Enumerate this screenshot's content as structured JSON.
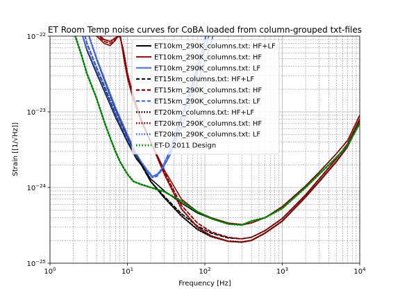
{
  "chart_data": {
    "type": "line",
    "title": "ET Room Temp noise curves for CoBA loaded from column-grouped txt-files",
    "xlabel": "Frequency [Hz]",
    "ylabel": "Strain [[1/√Hz]]",
    "xscale": "log",
    "yscale": "log",
    "xlim": [
      1,
      10000
    ],
    "ylim": [
      1e-25,
      1e-22
    ],
    "grid": true,
    "legend_position": "top-center",
    "x_ticks": [
      {
        "value": 1,
        "base": "10",
        "exp": "0"
      },
      {
        "value": 10,
        "base": "10",
        "exp": "1"
      },
      {
        "value": 100,
        "base": "10",
        "exp": "2"
      },
      {
        "value": 1000,
        "base": "10",
        "exp": "3"
      },
      {
        "value": 10000,
        "base": "10",
        "exp": "4"
      }
    ],
    "y_ticks": [
      {
        "value": 1e-25,
        "base": "10",
        "exp": "−25"
      },
      {
        "value": 1e-24,
        "base": "10",
        "exp": "−24"
      },
      {
        "value": 1e-23,
        "base": "10",
        "exp": "−23"
      },
      {
        "value": 1e-22,
        "base": "10",
        "exp": "−22"
      }
    ],
    "series": [
      {
        "name": "ET10km_290K_columns.txt: HF+LF",
        "color": "#000000",
        "style": "solid",
        "points": [
          [
            2.5,
            1.2e-22
          ],
          [
            3,
            6.5e-23
          ],
          [
            4,
            3.2e-23
          ],
          [
            5,
            1.9e-23
          ],
          [
            7,
            8.5e-24
          ],
          [
            10,
            4e-24
          ],
          [
            13,
            2.4e-24
          ],
          [
            15,
            2e-24
          ],
          [
            20,
            1.3e-24
          ],
          [
            30,
            9e-25
          ],
          [
            50,
            6.2e-25
          ],
          [
            80,
            4.6e-25
          ],
          [
            120,
            3.9e-25
          ],
          [
            200,
            3.3e-25
          ],
          [
            300,
            3.2e-25
          ],
          [
            400,
            3.4e-25
          ],
          [
            600,
            4e-25
          ],
          [
            1000,
            5.6e-25
          ],
          [
            2000,
            1.05e-24
          ],
          [
            3000,
            1.6e-24
          ],
          [
            5000,
            2.8e-24
          ],
          [
            7000,
            4.2e-24
          ],
          [
            10000,
            9e-24
          ]
        ]
      },
      {
        "name": "ET10km_290K_columns.txt: HF",
        "color": "#8b0000",
        "style": "solid",
        "points": [
          [
            3.5,
            1.2e-22
          ],
          [
            4,
            1e-22
          ],
          [
            5,
            8e-23
          ],
          [
            6,
            7.5e-23
          ],
          [
            7,
            8.8e-23
          ],
          [
            8,
            1.1e-22
          ],
          [
            9,
            5e-23
          ],
          [
            10,
            2.8e-23
          ],
          [
            12,
            1.4e-23
          ],
          [
            15,
            7.5e-24
          ],
          [
            20,
            4e-24
          ],
          [
            30,
            1.7e-24
          ],
          [
            50,
            7e-25
          ],
          [
            80,
            4.8e-25
          ],
          [
            120,
            4e-25
          ],
          [
            200,
            3.4e-25
          ],
          [
            300,
            3.25e-25
          ],
          [
            400,
            3.4e-25
          ],
          [
            600,
            4e-25
          ],
          [
            1000,
            5.6e-25
          ],
          [
            2000,
            1.05e-24
          ],
          [
            3000,
            1.6e-24
          ],
          [
            5000,
            2.8e-24
          ],
          [
            7000,
            4.2e-24
          ],
          [
            10000,
            9e-24
          ]
        ]
      },
      {
        "name": "ET10km_290K_columns.txt: LF",
        "color": "#4169e1",
        "style": "solid",
        "points": [
          [
            2.5,
            1.2e-22
          ],
          [
            3,
            6.8e-23
          ],
          [
            4,
            3.4e-23
          ],
          [
            5,
            2e-23
          ],
          [
            7,
            9e-24
          ],
          [
            10,
            4.2e-24
          ],
          [
            13,
            2.5e-24
          ],
          [
            15,
            2.1e-24
          ],
          [
            18,
            1.6e-24
          ],
          [
            21,
            1.4e-24
          ],
          [
            24,
            1.5e-24
          ],
          [
            28,
            1.7e-24
          ],
          [
            35,
            2.6e-24
          ],
          [
            45,
            5e-24
          ],
          [
            60,
            1e-23
          ],
          [
            80,
            2.4e-23
          ],
          [
            100,
            4.5e-23
          ],
          [
            120,
            8e-23
          ],
          [
            130,
            1.1e-22
          ]
        ]
      },
      {
        "name": "ET15km_columns.txt: HF+LF",
        "color": "#000000",
        "style": "dash",
        "points": [
          [
            2.7,
            1.2e-22
          ],
          [
            3,
            8e-23
          ],
          [
            4,
            3.8e-23
          ],
          [
            5,
            2.2e-23
          ],
          [
            7,
            9.5e-24
          ],
          [
            10,
            4.3e-24
          ],
          [
            13,
            2.5e-24
          ],
          [
            15,
            2e-24
          ],
          [
            20,
            1.2e-24
          ],
          [
            30,
            7.6e-25
          ],
          [
            50,
            4.5e-25
          ],
          [
            80,
            3.1e-25
          ],
          [
            120,
            2.5e-25
          ],
          [
            200,
            2.15e-25
          ],
          [
            300,
            2.1e-25
          ],
          [
            400,
            2.2e-25
          ],
          [
            600,
            2.7e-25
          ],
          [
            1000,
            3.9e-25
          ],
          [
            2000,
            8e-25
          ],
          [
            3000,
            1.3e-24
          ],
          [
            5000,
            2.4e-24
          ],
          [
            7000,
            3.8e-24
          ],
          [
            10000,
            8e-24
          ]
        ]
      },
      {
        "name": "ET15km_290K_columns.txt: HF",
        "color": "#8b0000",
        "style": "dash",
        "points": [
          [
            3.5,
            1.2e-22
          ],
          [
            4,
            1.05e-22
          ],
          [
            5,
            8.5e-23
          ],
          [
            6,
            8e-23
          ],
          [
            7,
            9e-23
          ],
          [
            8,
            1.05e-22
          ],
          [
            9,
            5.5e-23
          ],
          [
            10,
            3e-23
          ],
          [
            12,
            1.5e-23
          ],
          [
            15,
            7.8e-24
          ],
          [
            20,
            4e-24
          ],
          [
            30,
            1.6e-24
          ],
          [
            50,
            5.8e-25
          ],
          [
            80,
            3.4e-25
          ],
          [
            120,
            2.6e-25
          ],
          [
            200,
            2.2e-25
          ],
          [
            300,
            2.1e-25
          ],
          [
            400,
            2.2e-25
          ],
          [
            600,
            2.7e-25
          ],
          [
            1000,
            3.9e-25
          ],
          [
            2000,
            8e-25
          ],
          [
            3000,
            1.3e-24
          ],
          [
            5000,
            2.4e-24
          ],
          [
            7000,
            3.8e-24
          ],
          [
            10000,
            8e-24
          ]
        ]
      },
      {
        "name": "ET15km_290K_columns.txt: LF",
        "color": "#4169e1",
        "style": "dash",
        "points": [
          [
            2.7,
            1.2e-22
          ],
          [
            3,
            8.2e-23
          ],
          [
            4,
            3.9e-23
          ],
          [
            5,
            2.3e-23
          ],
          [
            7,
            9.8e-24
          ],
          [
            10,
            4.4e-24
          ],
          [
            13,
            2.6e-24
          ],
          [
            15,
            2.1e-24
          ],
          [
            18,
            1.6e-24
          ],
          [
            21,
            1.35e-24
          ],
          [
            24,
            1.4e-24
          ],
          [
            28,
            1.7e-24
          ],
          [
            35,
            2.8e-24
          ],
          [
            45,
            5.8e-24
          ],
          [
            60,
            1.3e-23
          ],
          [
            80,
            3.2e-23
          ],
          [
            100,
            6.5e-23
          ],
          [
            115,
            1.1e-22
          ]
        ]
      },
      {
        "name": "ET20km_columns.txt: HF+LF",
        "color": "#000000",
        "style": "dot",
        "points": [
          [
            3,
            1.2e-22
          ],
          [
            4,
            5e-23
          ],
          [
            5,
            2.7e-23
          ],
          [
            7,
            1.1e-23
          ],
          [
            10,
            4.8e-24
          ],
          [
            13,
            2.7e-24
          ],
          [
            15,
            2.1e-24
          ],
          [
            20,
            1.2e-24
          ],
          [
            30,
            7.3e-25
          ],
          [
            50,
            4.2e-25
          ],
          [
            80,
            2.8e-25
          ],
          [
            120,
            2.25e-25
          ],
          [
            200,
            1.95e-25
          ],
          [
            300,
            1.9e-25
          ],
          [
            400,
            2e-25
          ],
          [
            600,
            2.5e-25
          ],
          [
            1000,
            3.6e-25
          ],
          [
            2000,
            7.5e-25
          ],
          [
            3000,
            1.2e-24
          ],
          [
            5000,
            2.2e-24
          ],
          [
            7000,
            3.5e-24
          ],
          [
            10000,
            7.5e-24
          ]
        ]
      },
      {
        "name": "ET20km_290K_columns.txt: HF",
        "color": "#8b0000",
        "style": "dot",
        "points": [
          [
            3.8,
            1.2e-22
          ],
          [
            4,
            1.1e-22
          ],
          [
            5,
            9e-23
          ],
          [
            6,
            8.5e-23
          ],
          [
            7,
            9.5e-23
          ],
          [
            8,
            1e-22
          ],
          [
            9,
            6e-23
          ],
          [
            10,
            3.2e-23
          ],
          [
            12,
            1.6e-23
          ],
          [
            15,
            8e-24
          ],
          [
            20,
            4e-24
          ],
          [
            30,
            1.5e-24
          ],
          [
            50,
            5.2e-25
          ],
          [
            80,
            3e-25
          ],
          [
            120,
            2.3e-25
          ],
          [
            200,
            1.95e-25
          ],
          [
            300,
            1.9e-25
          ],
          [
            400,
            2e-25
          ],
          [
            600,
            2.5e-25
          ],
          [
            1000,
            3.6e-25
          ],
          [
            2000,
            7.5e-25
          ],
          [
            3000,
            1.2e-24
          ],
          [
            5000,
            2.2e-24
          ],
          [
            7000,
            3.5e-24
          ],
          [
            10000,
            7.5e-24
          ]
        ]
      },
      {
        "name": "ET20km_290K_columns.txt: LF",
        "color": "#4169e1",
        "style": "dot",
        "points": [
          [
            3,
            1.2e-22
          ],
          [
            4,
            5.1e-23
          ],
          [
            5,
            2.8e-23
          ],
          [
            7,
            1.15e-23
          ],
          [
            10,
            5e-24
          ],
          [
            13,
            2.8e-24
          ],
          [
            15,
            2.2e-24
          ],
          [
            18,
            1.7e-24
          ],
          [
            21,
            1.4e-24
          ],
          [
            24,
            1.45e-24
          ],
          [
            28,
            1.8e-24
          ],
          [
            35,
            3e-24
          ],
          [
            45,
            6.5e-24
          ],
          [
            60,
            1.5e-23
          ],
          [
            80,
            3.8e-23
          ],
          [
            95,
            7e-23
          ],
          [
            105,
            1.1e-22
          ]
        ]
      },
      {
        "name": "ET-D 2011 Design",
        "color": "#008000",
        "style": "greendot",
        "points": [
          [
            2,
            1.2e-22
          ],
          [
            2.5,
            6e-23
          ],
          [
            3,
            3.2e-23
          ],
          [
            4,
            1.5e-23
          ],
          [
            5,
            7.5e-24
          ],
          [
            6,
            4.5e-24
          ],
          [
            7,
            3e-24
          ],
          [
            8,
            2.2e-24
          ],
          [
            10,
            1.5e-24
          ],
          [
            12,
            1.2e-24
          ],
          [
            15,
            1.1e-24
          ],
          [
            20,
            1e-24
          ],
          [
            30,
            8.8e-25
          ],
          [
            50,
            6.6e-25
          ],
          [
            80,
            4.8e-25
          ],
          [
            120,
            3.9e-25
          ],
          [
            200,
            3.3e-25
          ],
          [
            300,
            3.2e-25
          ],
          [
            400,
            3.6e-25
          ],
          [
            600,
            4e-25
          ],
          [
            1000,
            5.3e-25
          ],
          [
            2000,
            1e-24
          ],
          [
            3000,
            1.5e-24
          ],
          [
            5000,
            2.5e-24
          ],
          [
            7000,
            3.6e-24
          ],
          [
            10000,
            7e-24
          ]
        ]
      }
    ]
  }
}
